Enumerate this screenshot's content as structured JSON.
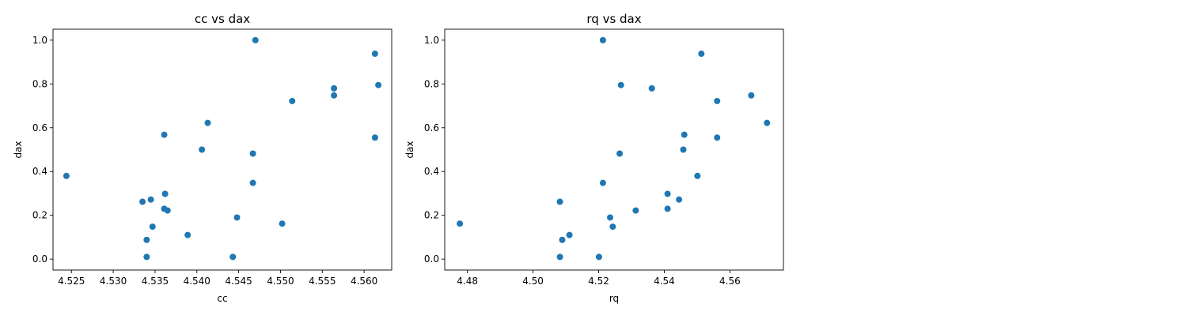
{
  "chart_data": [
    {
      "type": "scatter",
      "title": "cc vs dax",
      "xlabel": "cc",
      "ylabel": "dax",
      "xlim": [
        4.5228,
        4.5633
      ],
      "ylim": [
        -0.05,
        1.05
      ],
      "xticks": [
        "4.525",
        "4.530",
        "4.535",
        "4.540",
        "4.545",
        "4.550",
        "4.555",
        "4.560"
      ],
      "xtick_values": [
        4.525,
        4.53,
        4.535,
        4.54,
        4.545,
        4.55,
        4.555,
        4.56
      ],
      "yticks": [
        "0.0",
        "0.2",
        "0.4",
        "0.6",
        "0.8",
        "1.0"
      ],
      "ytick_values": [
        0.0,
        0.2,
        0.4,
        0.6,
        0.8,
        1.0
      ],
      "color": "#1f77b4",
      "x": [
        4.5244,
        4.5335,
        4.5345,
        4.5361,
        4.5362,
        4.5361,
        4.5365,
        4.5347,
        4.534,
        4.534,
        4.5389,
        4.5406,
        4.5413,
        4.5443,
        4.5448,
        4.5467,
        4.5467,
        4.547,
        4.5502,
        4.5514,
        4.5564,
        4.5564,
        4.5613,
        4.5613,
        4.5617
      ],
      "y": [
        0.38,
        0.262,
        0.272,
        0.568,
        0.298,
        0.23,
        0.222,
        0.148,
        0.088,
        0.01,
        0.11,
        0.5,
        0.622,
        0.01,
        0.19,
        0.482,
        0.348,
        1.0,
        0.162,
        0.722,
        0.78,
        0.748,
        0.938,
        0.555,
        0.795
      ]
    },
    {
      "type": "scatter",
      "title": "rq vs dax",
      "xlabel": "rq",
      "ylabel": "dax",
      "xlim": [
        4.4731,
        4.5763
      ],
      "ylim": [
        -0.05,
        1.05
      ],
      "xticks": [
        "4.48",
        "4.50",
        "4.52",
        "4.54",
        "4.56"
      ],
      "xtick_values": [
        4.48,
        4.5,
        4.52,
        4.54,
        4.56
      ],
      "yticks": [
        "0.0",
        "0.2",
        "0.4",
        "0.6",
        "0.8",
        "1.0"
      ],
      "ytick_values": [
        0.0,
        0.2,
        0.4,
        0.6,
        0.8,
        1.0
      ],
      "color": "#1f77b4",
      "x": [
        4.4777,
        4.5082,
        4.5089,
        4.5082,
        4.5111,
        4.5201,
        4.5213,
        4.5213,
        4.5235,
        4.5243,
        4.5264,
        4.5268,
        4.5313,
        4.5362,
        4.541,
        4.541,
        4.5445,
        4.5458,
        4.5461,
        4.5501,
        4.5513,
        4.5561,
        4.5561,
        4.5665,
        4.5713
      ],
      "y": [
        0.162,
        0.262,
        0.088,
        0.01,
        0.11,
        0.01,
        1.0,
        0.348,
        0.19,
        0.148,
        0.482,
        0.795,
        0.222,
        0.78,
        0.298,
        0.23,
        0.272,
        0.5,
        0.568,
        0.38,
        0.938,
        0.722,
        0.555,
        0.748,
        0.622
      ]
    }
  ]
}
